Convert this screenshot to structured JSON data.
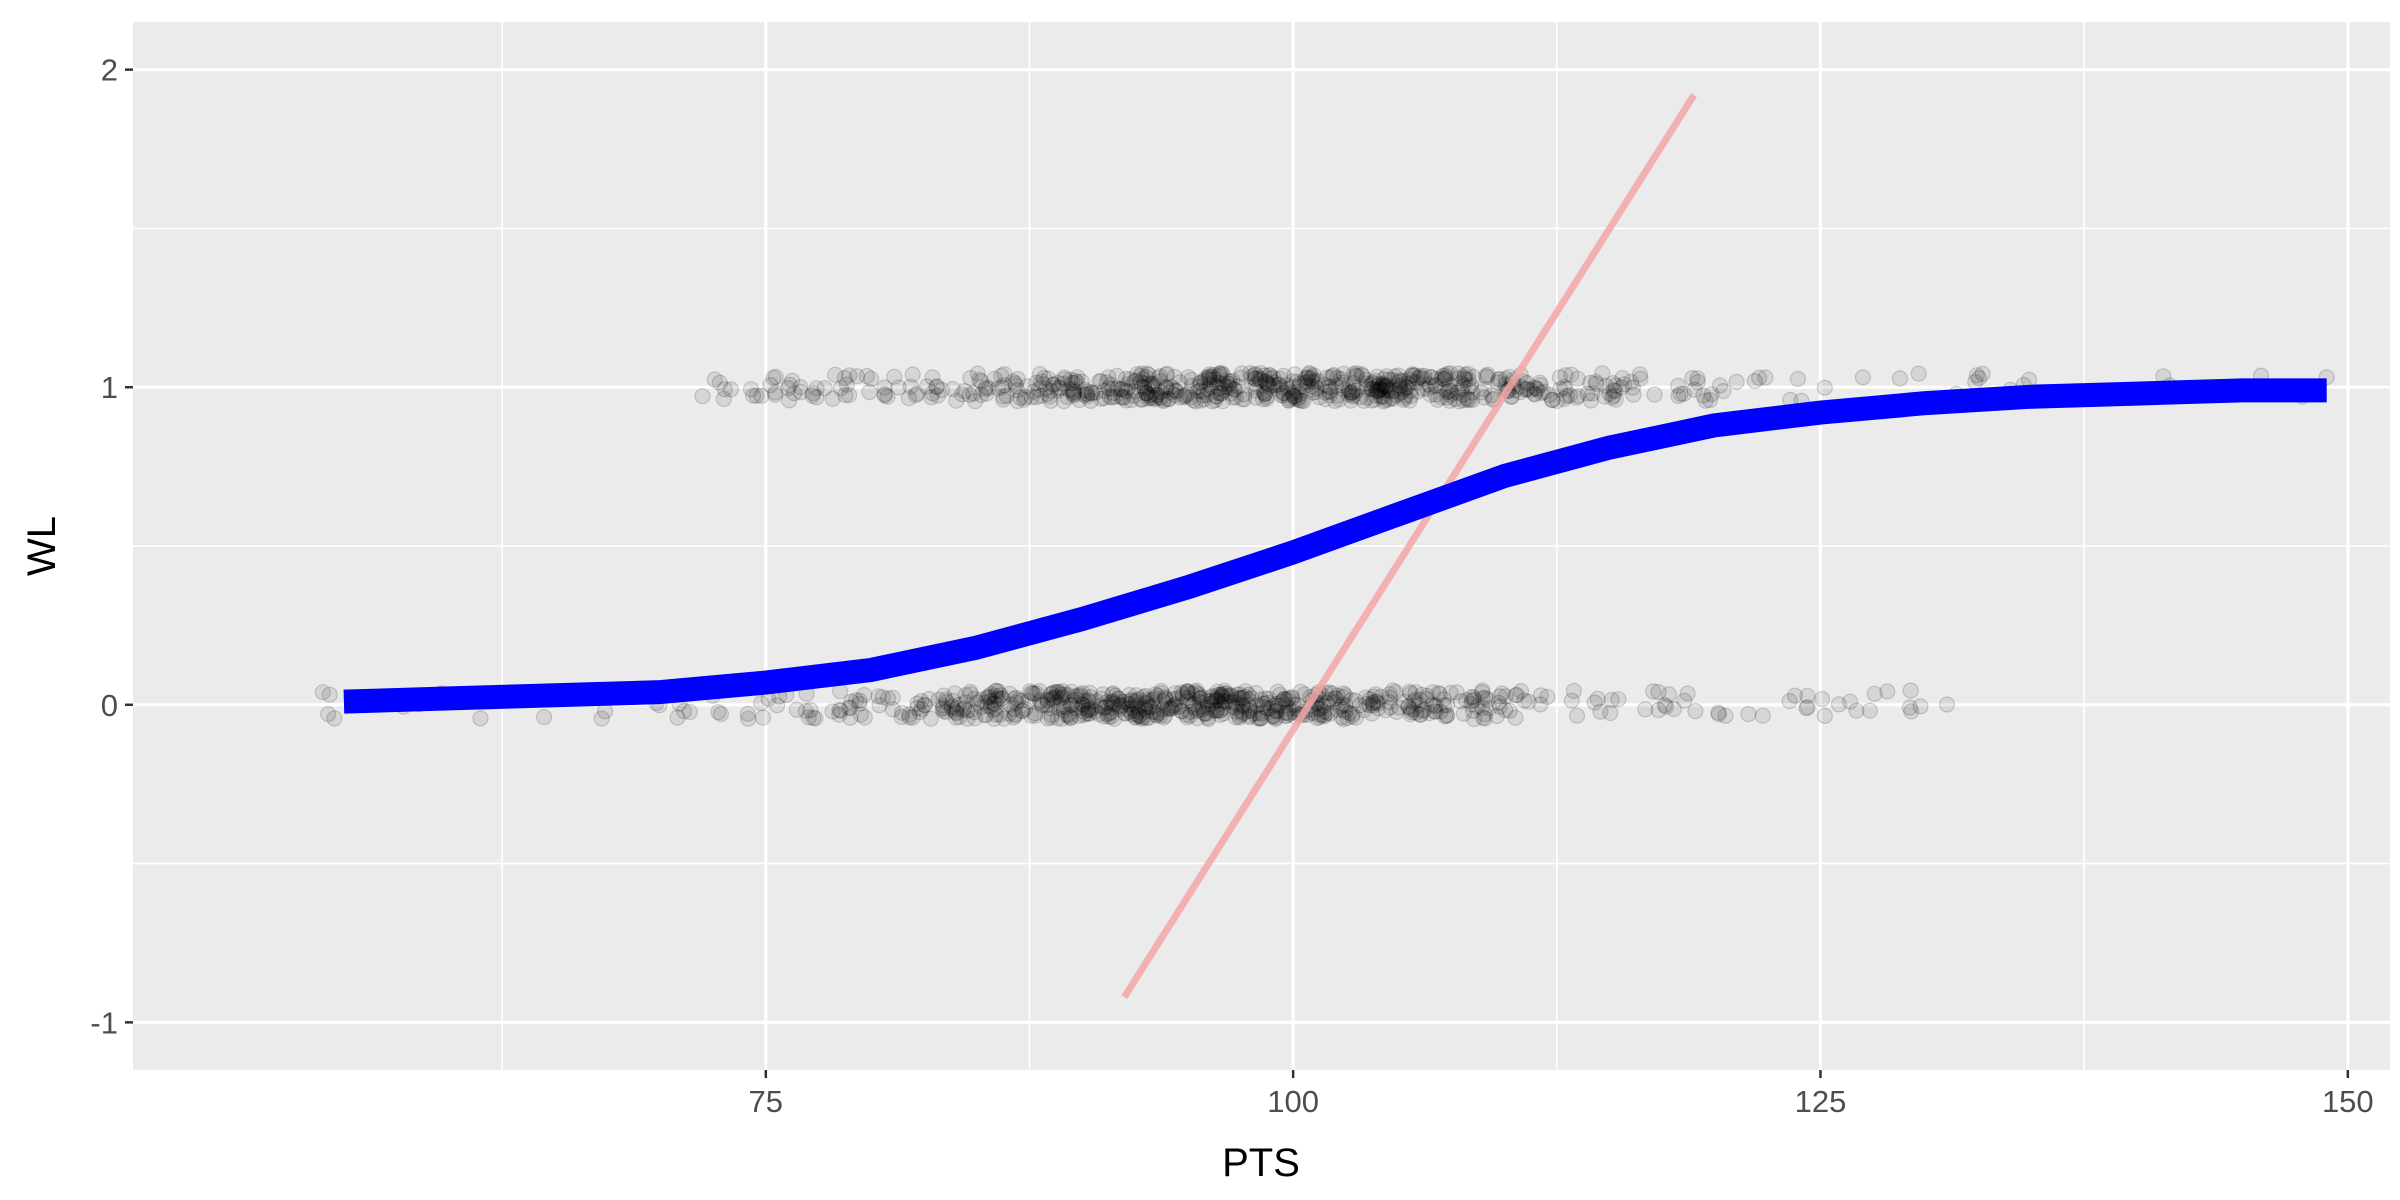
{
  "chart_data": {
    "type": "scatter",
    "title": "",
    "xlabel": "PTS",
    "ylabel": "WL",
    "xlim": [
      45,
      152
    ],
    "ylim": [
      -1.15,
      2.15
    ],
    "x_ticks": [
      75,
      100,
      125,
      150
    ],
    "x_tick_labels": [
      "75",
      "100",
      "125",
      "150"
    ],
    "y_ticks": [
      -1,
      0,
      1,
      2
    ],
    "y_tick_labels": [
      "-1",
      "0",
      "1",
      "2"
    ],
    "grid": true,
    "legend": "none",
    "colors": {
      "panel_background": "#ebebeb",
      "gridline": "#ffffff",
      "points": "#000000",
      "logistic_fit": "#0000ff",
      "linear_fit": "#f4a6a6"
    },
    "series": [
      {
        "kind": "points",
        "style": "semi-transparent black circles, vertically jittered",
        "groups": [
          {
            "wl": 1,
            "x_extent": [
              72,
              149
            ],
            "dense_extent": [
              83,
              127
            ],
            "peak_x": 100
          },
          {
            "wl": 0,
            "x_extent": [
              54,
              131
            ],
            "dense_extent": [
              76,
              117
            ],
            "peak_x": 95
          }
        ]
      },
      {
        "kind": "logistic_curve",
        "x": [
          55,
          60,
          65,
          70,
          75,
          80,
          85,
          90,
          95,
          100,
          105,
          110,
          115,
          120,
          125,
          130,
          135,
          140,
          145,
          149
        ],
        "y": [
          0.01,
          0.02,
          0.03,
          0.04,
          0.07,
          0.11,
          0.18,
          0.27,
          0.37,
          0.48,
          0.6,
          0.72,
          0.81,
          0.88,
          0.92,
          0.95,
          0.97,
          0.98,
          0.99,
          0.99
        ]
      },
      {
        "kind": "linear_fit",
        "x": [
          92,
          119
        ],
        "y": [
          -0.92,
          1.92
        ]
      }
    ]
  }
}
